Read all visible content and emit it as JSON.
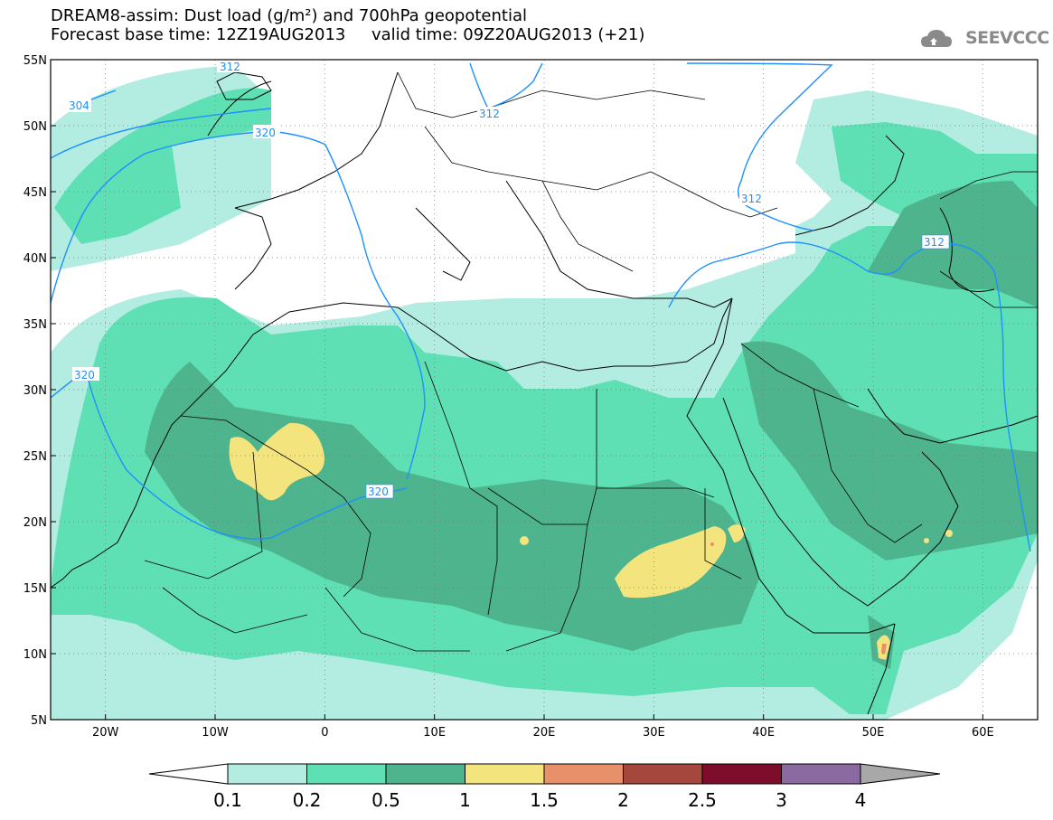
{
  "header": {
    "title_line1": "DREAM8-assim: Dust load (g/m²) and 700hPa geopotential",
    "title_line2": "Forecast base time: 12Z19AUG2013     valid time: 09Z20AUG2013 (+21)",
    "logo_text": "SEEVCCC"
  },
  "map": {
    "lat_labels": [
      "55N",
      "50N",
      "45N",
      "40N",
      "35N",
      "30N",
      "25N",
      "20N",
      "15N",
      "10N",
      "5N"
    ],
    "lon_labels": [
      "20W",
      "10W",
      "0",
      "10E",
      "20E",
      "30E",
      "40E",
      "50E",
      "60E"
    ],
    "contour_labels": [
      "304",
      "312",
      "312",
      "320",
      "320",
      "320",
      "312",
      "312",
      "312"
    ],
    "geopotential_line_color": "#1e90ff",
    "extent": {
      "lon_min": -25,
      "lon_max": 65,
      "lat_min": 5,
      "lat_max": 55
    }
  },
  "colorbar": {
    "levels": [
      "0.1",
      "0.2",
      "0.5",
      "1",
      "1.5",
      "2",
      "2.5",
      "3",
      "4"
    ],
    "colors": [
      "#b3ece0",
      "#5fe0b4",
      "#4db48e",
      "#f4e47e",
      "#e8906a",
      "#a5473d",
      "#7d0d2b",
      "#8a6aa0",
      "#a8a8a8"
    ]
  }
}
